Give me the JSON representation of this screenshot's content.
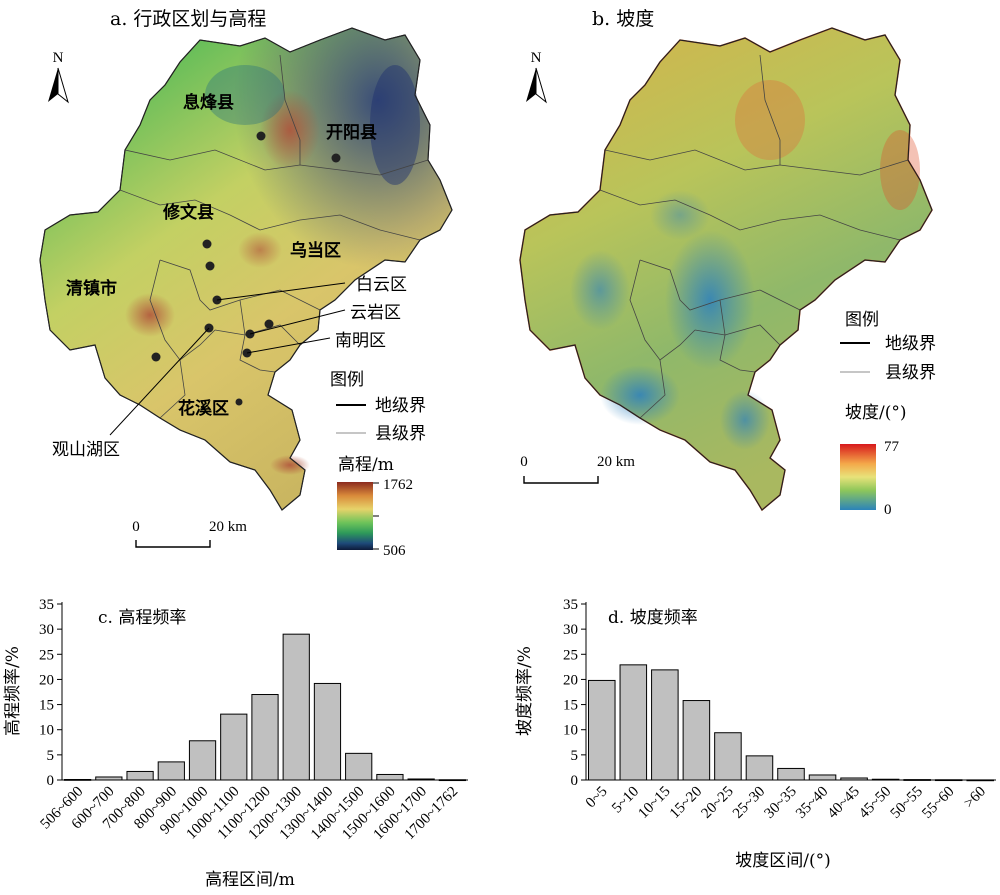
{
  "panel_a": {
    "title": "a. 行政区划与高程",
    "north": "N",
    "districts": {
      "xifeng": "息烽县",
      "kaiyang": "开阳县",
      "xiuwen": "修文县",
      "wudang": "乌当区",
      "qingzhen": "清镇市",
      "baiyun": "白云区",
      "yunyan": "云岩区",
      "nanming": "南明区",
      "huaxi": "花溪区",
      "guanshanhu": "观山湖区"
    },
    "legend": {
      "title": "图例",
      "prefecture_boundary": "地级界",
      "county_boundary": "县级界",
      "colorbar_title": "高程/m",
      "max": "1762",
      "min": "506",
      "colors": [
        "#8b2a1e",
        "#d98a3a",
        "#e6d36a",
        "#6cc35a",
        "#2e9a5a",
        "#1e4a7a",
        "#0d1a3a"
      ]
    },
    "scale": {
      "zero": "0",
      "length": "20 km"
    }
  },
  "panel_b": {
    "title": "b. 坡度",
    "north": "N",
    "legend": {
      "title": "图例",
      "prefecture_boundary": "地级界",
      "county_boundary": "县级界",
      "colorbar_title": "坡度/(°)",
      "max": "77",
      "min": "0",
      "colors": [
        "#d7191c",
        "#f4a94a",
        "#e8e27a",
        "#8fc75a",
        "#2b83ba"
      ]
    },
    "scale": {
      "zero": "0",
      "length": "20 km"
    }
  },
  "chart_data": [
    {
      "type": "bar",
      "title": "c. 高程频率",
      "xlabel": "高程区间/m",
      "ylabel": "高程频率/%",
      "ylim": [
        0,
        35
      ],
      "yticks": [
        0,
        5,
        10,
        15,
        20,
        25,
        30,
        35
      ],
      "categories": [
        "506~600",
        "600~700",
        "700~800",
        "800~900",
        "900~1000",
        "1000~1100",
        "1100~1200",
        "1200~1300",
        "1300~1400",
        "1400~1500",
        "1500~1600",
        "1600~1700",
        "1700~1762"
      ],
      "values": [
        0.1,
        0.6,
        1.7,
        3.6,
        7.8,
        13.1,
        17.0,
        29.0,
        19.2,
        5.3,
        1.1,
        0.2,
        0.05
      ],
      "bar_color": "#c0c0c0"
    },
    {
      "type": "bar",
      "title": "d. 坡度频率",
      "xlabel": "坡度区间/(°)",
      "ylabel": "坡度频率/%",
      "ylim": [
        0,
        35
      ],
      "yticks": [
        0,
        5,
        10,
        15,
        20,
        25,
        30,
        35
      ],
      "categories": [
        "0~5",
        "5~10",
        "10~15",
        "15~20",
        "20~25",
        "25~30",
        "30~35",
        "35~40",
        "40~45",
        "45~50",
        "50~55",
        "55~60",
        ">60"
      ],
      "values": [
        19.8,
        22.9,
        21.9,
        15.8,
        9.4,
        4.8,
        2.3,
        1.0,
        0.4,
        0.15,
        0.08,
        0.05,
        0.02
      ],
      "bar_color": "#c0c0c0"
    }
  ]
}
